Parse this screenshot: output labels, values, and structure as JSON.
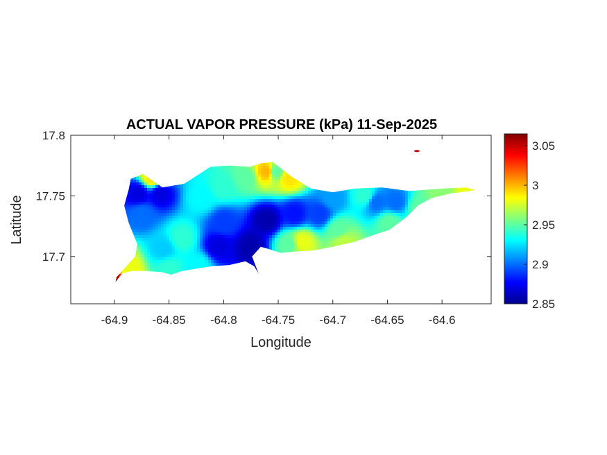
{
  "chart_data": {
    "type": "heatmap",
    "title": "ACTUAL VAPOR PRESSURE (kPa) 11-Sep-2025",
    "xlabel": "Longitude",
    "ylabel": "Latitude",
    "xlim": [
      -64.94,
      -64.555
    ],
    "ylim": [
      17.661,
      17.8
    ],
    "x_ticks": [
      -64.9,
      -64.85,
      -64.8,
      -64.75,
      -64.7,
      -64.65,
      -64.6
    ],
    "x_tick_labels": [
      "-64.9",
      "-64.85",
      "-64.8",
      "-64.75",
      "-64.7",
      "-64.65",
      "-64.6"
    ],
    "y_ticks": [
      17.7,
      17.75,
      17.8
    ],
    "y_tick_labels": [
      "17.7",
      "17.75",
      "17.8"
    ],
    "colorbar": {
      "colormap": "jet",
      "range": [
        2.85,
        3.065
      ],
      "ticks": [
        2.85,
        2.9,
        2.95,
        3,
        3.05
      ],
      "tick_labels": [
        "2.85",
        "2.9",
        "2.95",
        "3",
        "3.05"
      ]
    },
    "grid": false,
    "island_outline": [
      [
        -64.899,
        17.679
      ],
      [
        -64.893,
        17.686
      ],
      [
        -64.884,
        17.688
      ],
      [
        -64.87,
        17.688
      ],
      [
        -64.856,
        17.687
      ],
      [
        -64.848,
        17.685
      ],
      [
        -64.838,
        17.688
      ],
      [
        -64.825,
        17.69
      ],
      [
        -64.81,
        17.692
      ],
      [
        -64.795,
        17.693
      ],
      [
        -64.78,
        17.696
      ],
      [
        -64.772,
        17.692
      ],
      [
        -64.768,
        17.686
      ],
      [
        -64.774,
        17.7
      ],
      [
        -64.766,
        17.708
      ],
      [
        -64.758,
        17.706
      ],
      [
        -64.748,
        17.703
      ],
      [
        -64.735,
        17.704
      ],
      [
        -64.718,
        17.705
      ],
      [
        -64.7,
        17.708
      ],
      [
        -64.68,
        17.712
      ],
      [
        -64.662,
        17.718
      ],
      [
        -64.648,
        17.722
      ],
      [
        -64.632,
        17.733
      ],
      [
        -64.622,
        17.742
      ],
      [
        -64.61,
        17.748
      ],
      [
        -64.592,
        17.752
      ],
      [
        -64.574,
        17.754
      ],
      [
        -64.57,
        17.755
      ],
      [
        -64.578,
        17.757
      ],
      [
        -64.6,
        17.756
      ],
      [
        -64.63,
        17.754
      ],
      [
        -64.655,
        17.757
      ],
      [
        -64.68,
        17.756
      ],
      [
        -64.7,
        17.753
      ],
      [
        -64.72,
        17.756
      ],
      [
        -64.738,
        17.766
      ],
      [
        -64.755,
        17.778
      ],
      [
        -64.765,
        17.777
      ],
      [
        -64.776,
        17.774
      ],
      [
        -64.795,
        17.775
      ],
      [
        -64.812,
        17.774
      ],
      [
        -64.836,
        17.76
      ],
      [
        -64.856,
        17.757
      ],
      [
        -64.874,
        17.768
      ],
      [
        -64.885,
        17.764
      ],
      [
        -64.887,
        17.755
      ],
      [
        -64.891,
        17.742
      ],
      [
        -64.887,
        17.728
      ],
      [
        -64.879,
        17.71
      ],
      [
        -64.881,
        17.7
      ],
      [
        -64.888,
        17.693
      ],
      [
        -64.898,
        17.683
      ]
    ],
    "offshore_point": [
      -64.623,
      17.787
    ],
    "field_samples": [
      {
        "lon": -64.9,
        "lat": 17.68,
        "value": 3.06
      },
      {
        "lon": -64.888,
        "lat": 17.69,
        "value": 2.98
      },
      {
        "lon": -64.878,
        "lat": 17.752,
        "value": 2.87
      },
      {
        "lon": -64.858,
        "lat": 17.752,
        "value": 2.87
      },
      {
        "lon": -64.875,
        "lat": 17.735,
        "value": 2.9
      },
      {
        "lon": -64.838,
        "lat": 17.715,
        "value": 2.94
      },
      {
        "lon": -64.855,
        "lat": 17.706,
        "value": 2.92
      },
      {
        "lon": -64.82,
        "lat": 17.748,
        "value": 2.93
      },
      {
        "lon": -64.8,
        "lat": 17.757,
        "value": 2.94
      },
      {
        "lon": -64.78,
        "lat": 17.765,
        "value": 2.95
      },
      {
        "lon": -64.752,
        "lat": 17.77,
        "value": 2.95
      },
      {
        "lon": -64.74,
        "lat": 17.765,
        "value": 2.99
      },
      {
        "lon": -64.805,
        "lat": 17.708,
        "value": 2.87
      },
      {
        "lon": -64.775,
        "lat": 17.708,
        "value": 2.86
      },
      {
        "lon": -64.76,
        "lat": 17.73,
        "value": 2.86
      },
      {
        "lon": -64.735,
        "lat": 17.735,
        "value": 2.88
      },
      {
        "lon": -64.712,
        "lat": 17.735,
        "value": 2.89
      },
      {
        "lon": -64.728,
        "lat": 17.712,
        "value": 2.98
      },
      {
        "lon": -64.695,
        "lat": 17.722,
        "value": 2.95
      },
      {
        "lon": -64.7,
        "lat": 17.748,
        "value": 2.91
      },
      {
        "lon": -64.67,
        "lat": 17.75,
        "value": 2.94
      },
      {
        "lon": -64.66,
        "lat": 17.745,
        "value": 2.9
      },
      {
        "lon": -64.643,
        "lat": 17.745,
        "value": 2.9
      },
      {
        "lon": -64.648,
        "lat": 17.728,
        "value": 2.95
      },
      {
        "lon": -64.6,
        "lat": 17.75,
        "value": 2.96
      },
      {
        "lon": -64.575,
        "lat": 17.755,
        "value": 2.98
      },
      {
        "lon": -64.823,
        "lat": 17.693,
        "value": 2.93
      },
      {
        "lon": -64.85,
        "lat": 17.69,
        "value": 2.94
      },
      {
        "lon": -64.8,
        "lat": 17.728,
        "value": 2.89
      },
      {
        "lon": -64.74,
        "lat": 17.71,
        "value": 2.95
      },
      {
        "lon": -64.69,
        "lat": 17.712,
        "value": 2.97
      },
      {
        "lon": -64.865,
        "lat": 17.765,
        "value": 2.99
      },
      {
        "lon": -64.76,
        "lat": 17.77,
        "value": 3.0
      },
      {
        "lon": -64.62,
        "lat": 17.74,
        "value": 2.95
      },
      {
        "lon": -64.623,
        "lat": 17.787,
        "value": 3.05
      }
    ]
  }
}
